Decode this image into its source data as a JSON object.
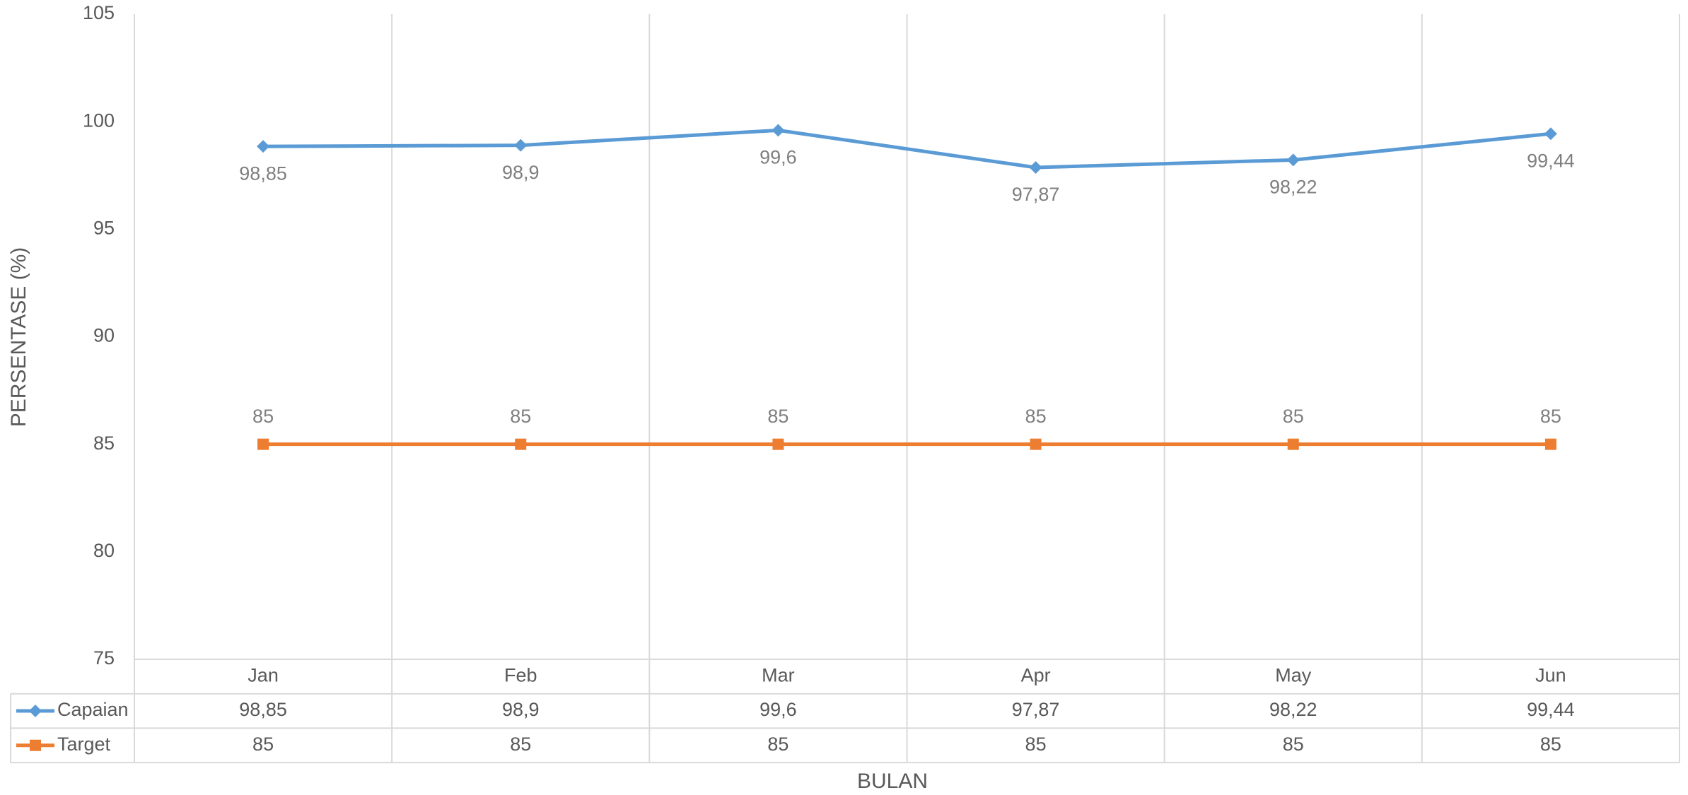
{
  "chart_data": {
    "type": "line",
    "x_label": "BULAN",
    "y_label": "PERSENTASE (%)",
    "categories": [
      "Jan",
      "Feb",
      "Mar",
      "Apr",
      "May",
      "Jun"
    ],
    "series": [
      {
        "name": "Capaian",
        "color": "#5b9bd5",
        "marker": "diamond",
        "label_position": "below",
        "values": [
          98.85,
          98.9,
          99.6,
          97.87,
          98.22,
          99.44
        ],
        "value_labels": [
          "98,85",
          "98,9",
          "99,6",
          "97,87",
          "98,22",
          "99,44"
        ]
      },
      {
        "name": "Target",
        "color": "#ed7d31",
        "marker": "square",
        "label_position": "above",
        "values": [
          85,
          85,
          85,
          85,
          85,
          85
        ]
      }
    ],
    "ylim": [
      75,
      105
    ],
    "yticks": [
      75,
      80,
      85,
      90,
      95,
      100,
      105
    ],
    "data_table": true
  }
}
